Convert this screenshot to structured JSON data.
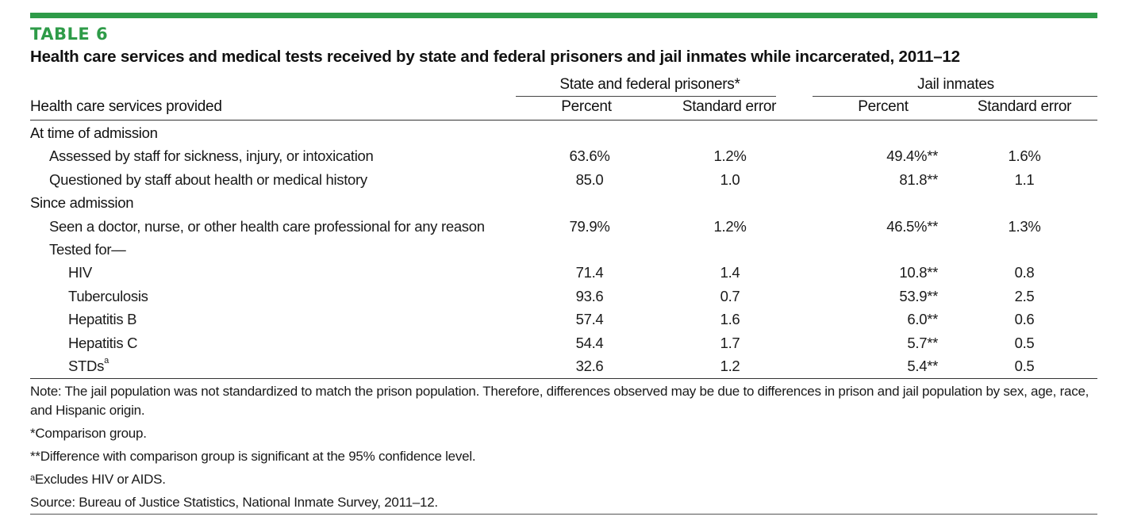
{
  "header": {
    "table_label": "TABLE 6",
    "title": "Health care services and medical tests received by state and federal prisoners and jail inmates while incarcerated, 2011–12"
  },
  "columns": {
    "row_header": "Health care services provided",
    "group_1": "State and federal prisoners*",
    "group_2": "Jail inmates",
    "percent": "Percent",
    "standard_error": "Standard error"
  },
  "rows": [
    {
      "label": "At time of admission",
      "level": 0,
      "values": [
        "",
        "",
        "",
        ""
      ]
    },
    {
      "label": "Assessed by staff for sickness, injury, or intoxication",
      "level": 1,
      "values": [
        "63.6%",
        "1.2%",
        "49.4%**",
        "1.6%"
      ]
    },
    {
      "label": "Questioned by staff about health or medical history",
      "level": 1,
      "values": [
        "85.0",
        "1.0",
        "81.8**",
        "1.1"
      ]
    },
    {
      "label": "Since admission",
      "level": 0,
      "values": [
        "",
        "",
        "",
        ""
      ]
    },
    {
      "label": "Seen a doctor, nurse, or other health care professional for any reason",
      "level": 1,
      "values": [
        "79.9%",
        "1.2%",
        "46.5%**",
        "1.3%"
      ]
    },
    {
      "label": "Tested for—",
      "level": 1,
      "values": [
        "",
        "",
        "",
        ""
      ]
    },
    {
      "label": "HIV",
      "level": 2,
      "values": [
        "71.4",
        "1.4",
        "10.8**",
        "0.8"
      ]
    },
    {
      "label": "Tuberculosis",
      "level": 2,
      "values": [
        "93.6",
        "0.7",
        "53.9**",
        "2.5"
      ]
    },
    {
      "label": "Hepatitis B",
      "level": 2,
      "values": [
        "57.4",
        "1.6",
        "6.0**",
        "0.6"
      ]
    },
    {
      "label": "Hepatitis C",
      "level": 2,
      "values": [
        "54.4",
        "1.7",
        "5.7**",
        "0.5"
      ]
    },
    {
      "label": "STDs",
      "label_sup": "a",
      "level": 2,
      "values": [
        "32.6",
        "1.2",
        "5.4**",
        "0.5"
      ]
    }
  ],
  "notes": {
    "note": "Note: The jail population was not standardized to match the prison population. Therefore, differences observed may be due to differences in prison and jail population by sex, age, race, and Hispanic origin.",
    "comparison": "*Comparison group.",
    "significance": "**Difference with comparison group is significant at the 95% confidence level.",
    "footnote_a_marker": "a",
    "footnote_a": "Excludes HIV or AIDS.",
    "source": "Source: Bureau of Justice Statistics, National Inmate Survey, 2011–12."
  },
  "colors": {
    "accent": "#2e9b48"
  }
}
